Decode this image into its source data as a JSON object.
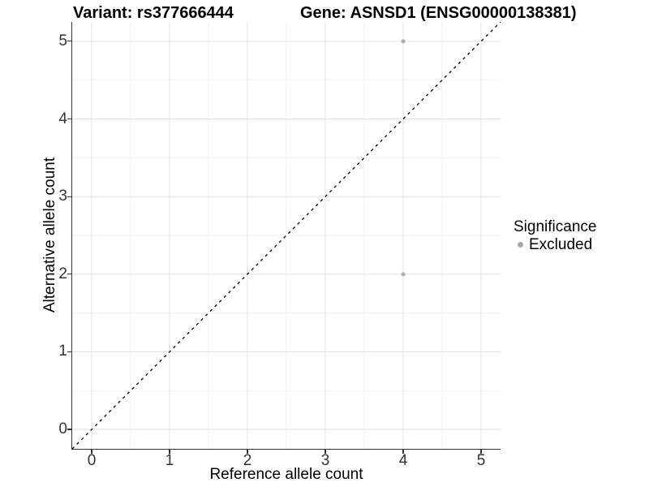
{
  "chart_data": {
    "type": "scatter",
    "titles": [
      "Variant: rs377666444",
      "Gene: ASNSD1 (ENSG00000138381)"
    ],
    "xlabel": "Reference allele count",
    "ylabel": "Alternative allele count",
    "xlim": [
      -0.25,
      5.25
    ],
    "ylim": [
      -0.25,
      5.25
    ],
    "xticks": [
      0,
      1,
      2,
      3,
      4,
      5
    ],
    "yticks": [
      0,
      1,
      2,
      3,
      4,
      5
    ],
    "x_minor_gridlines": [
      0.5,
      1.5,
      2.5,
      3.5,
      4.5
    ],
    "y_minor_gridlines": [
      0.5,
      1.5,
      2.5,
      3.5,
      4.5
    ],
    "grid": "on",
    "series": [
      {
        "name": "Excluded",
        "marker": "circle",
        "color": "#b0b0b0",
        "points": [
          {
            "x": 4,
            "y": 5
          },
          {
            "x": 4,
            "y": 2
          }
        ]
      }
    ],
    "reference_line": {
      "type": "identity y=x",
      "style": "dashed",
      "color": "#000000"
    },
    "legend": {
      "position": "right",
      "title": "Significance",
      "items": [
        {
          "label": "Excluded",
          "color": "#a9a9a9",
          "marker": "circle"
        }
      ]
    },
    "colors": {
      "background": "#ffffff",
      "major_grid": "#e4e4e4",
      "minor_grid": "#f1f1f1",
      "axis_line": "#333333",
      "tick_label": "#333333",
      "title_text": "#000000"
    }
  }
}
